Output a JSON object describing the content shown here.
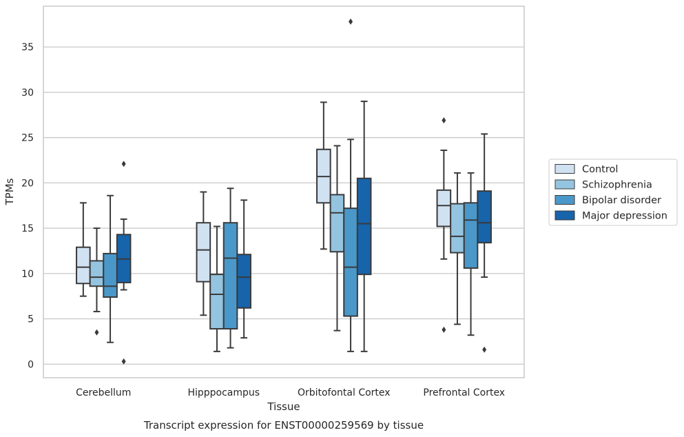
{
  "chart_data": {
    "type": "box",
    "title": "Transcript expression for ENST00000259569 by tissue",
    "xlabel": "Tissue",
    "ylabel": "TPMs",
    "ylim": [
      -1.5,
      39.5
    ],
    "yticks": [
      0,
      5,
      10,
      15,
      20,
      25,
      30,
      35
    ],
    "grid": true,
    "legend_position": "right",
    "categories": [
      "Cerebellum",
      "Hipppocampus",
      "Orbitofontal Cortex",
      "Prefrontal Cortex"
    ],
    "series": [
      {
        "name": "Control",
        "color": "#d0e1f2",
        "boxes": [
          {
            "whislo": 7.5,
            "q1": 8.9,
            "med": 10.7,
            "q3": 12.9,
            "whishi": 17.8,
            "fliers": []
          },
          {
            "whislo": 5.4,
            "q1": 9.1,
            "med": 12.6,
            "q3": 15.6,
            "whishi": 19.0,
            "fliers": []
          },
          {
            "whislo": 12.7,
            "q1": 17.8,
            "med": 20.7,
            "q3": 23.7,
            "whishi": 28.9,
            "fliers": []
          },
          {
            "whislo": 11.6,
            "q1": 15.2,
            "med": 17.5,
            "q3": 19.2,
            "whishi": 23.6,
            "fliers": [
              3.8,
              26.9
            ]
          }
        ]
      },
      {
        "name": "Schizophrenia",
        "color": "#94c4df",
        "boxes": [
          {
            "whislo": 5.8,
            "q1": 8.6,
            "med": 9.6,
            "q3": 11.4,
            "whishi": 15.0,
            "fliers": [
              3.5
            ]
          },
          {
            "whislo": 1.4,
            "q1": 3.9,
            "med": 7.7,
            "q3": 9.9,
            "whishi": 15.2,
            "fliers": []
          },
          {
            "whislo": 3.7,
            "q1": 12.4,
            "med": 16.7,
            "q3": 18.7,
            "whishi": 24.1,
            "fliers": []
          },
          {
            "whislo": 4.4,
            "q1": 12.3,
            "med": 14.1,
            "q3": 17.7,
            "whishi": 21.1,
            "fliers": []
          }
        ]
      },
      {
        "name": "Bipolar disorder",
        "color": "#4a98c9",
        "boxes": [
          {
            "whislo": 2.4,
            "q1": 7.4,
            "med": 8.6,
            "q3": 12.2,
            "whishi": 18.6,
            "fliers": []
          },
          {
            "whislo": 1.8,
            "q1": 3.9,
            "med": 11.7,
            "q3": 15.6,
            "whishi": 19.4,
            "fliers": []
          },
          {
            "whislo": 1.4,
            "q1": 5.3,
            "med": 10.7,
            "q3": 17.2,
            "whishi": 24.8,
            "fliers": [
              37.8
            ]
          },
          {
            "whislo": 3.2,
            "q1": 10.6,
            "med": 15.9,
            "q3": 17.8,
            "whishi": 21.1,
            "fliers": []
          }
        ]
      },
      {
        "name": "Major depression",
        "color": "#1764ab",
        "boxes": [
          {
            "whislo": 8.2,
            "q1": 9.0,
            "med": 11.6,
            "q3": 14.3,
            "whishi": 16.0,
            "fliers": [
              0.3,
              22.1
            ]
          },
          {
            "whislo": 2.9,
            "q1": 6.2,
            "med": 9.6,
            "q3": 12.1,
            "whishi": 18.1,
            "fliers": []
          },
          {
            "whislo": 1.4,
            "q1": 9.9,
            "med": 15.5,
            "q3": 20.5,
            "whishi": 29.0,
            "fliers": []
          },
          {
            "whislo": 9.6,
            "q1": 13.4,
            "med": 15.6,
            "q3": 19.1,
            "whishi": 25.4,
            "fliers": [
              1.6
            ]
          }
        ]
      }
    ]
  }
}
